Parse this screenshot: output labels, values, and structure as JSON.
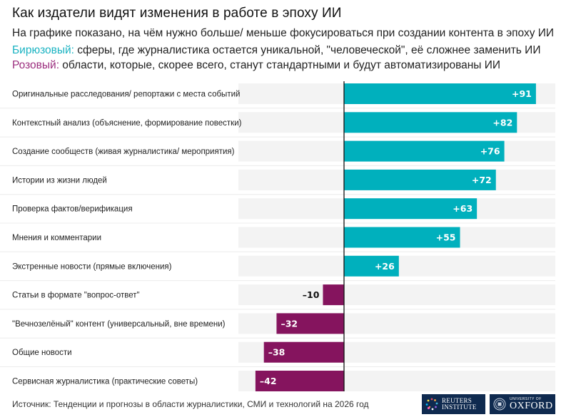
{
  "header": {
    "title": "Как издатели видят изменения в работе в эпоху ИИ",
    "subtitle": "На графике показано, на чём нужно больше/ меньше фокусироваться при создании контента в эпоху ИИ",
    "legend": {
      "teal_word": "Бирюзовый:",
      "teal_text": " сферы, где журналистика остается уникальной, \"человеческой\", её сложнее заменить ИИ",
      "pink_word": "Розовый:",
      "pink_text": " области, которые, скорее всего, станут стандартными и будут автоматизированы ИИ"
    }
  },
  "colors": {
    "positive": "#00b0bd",
    "negative": "#85145e",
    "teal_text": "#1ab3c2",
    "pink_text": "#9c2e7e",
    "row_bg": "#f3f3f3",
    "axis": "#111111"
  },
  "chart_data": {
    "type": "bar",
    "orientation": "horizontal",
    "title": "Как издатели видят изменения в работе в эпоху ИИ",
    "xlabel": "",
    "ylabel": "",
    "xlim": [
      -50,
      100
    ],
    "grid": false,
    "categories": [
      "Оригинальные расследования/ репортажи с места событий",
      "Контекстный анализ (объяснение, формирование повестки)",
      "Создание сообществ (живая журналистика/ мероприятия)",
      "Истории из жизни людей",
      "Проверка фактов/верификация",
      "Мнения и комментарии",
      "Экстренные новости (прямые включения)",
      "Статьи в формате \"вопрос-ответ\"",
      "\"Вечнозелёный\" контент (универсальный, вне времени)",
      "Общие новости",
      "Сервисная журналистика (практические советы)"
    ],
    "values": [
      91,
      82,
      76,
      72,
      63,
      55,
      26,
      -10,
      -32,
      -38,
      -42
    ],
    "value_labels": [
      "+91",
      "+82",
      "+76",
      "+72",
      "+63",
      "+55",
      "+26",
      "–10",
      "–32",
      "–38",
      "–42"
    ]
  },
  "footer": {
    "source": "Источник: Тенденции и прогнозы в области журналистики, СМИ и технологий на 2026 год",
    "logos": [
      {
        "name": "reuters-institute",
        "line1": "REUTERS",
        "line2": "INSTITUTE"
      },
      {
        "name": "university-of-oxford",
        "line1": "UNIVERSITY OF",
        "line2": "OXFORD"
      }
    ]
  }
}
